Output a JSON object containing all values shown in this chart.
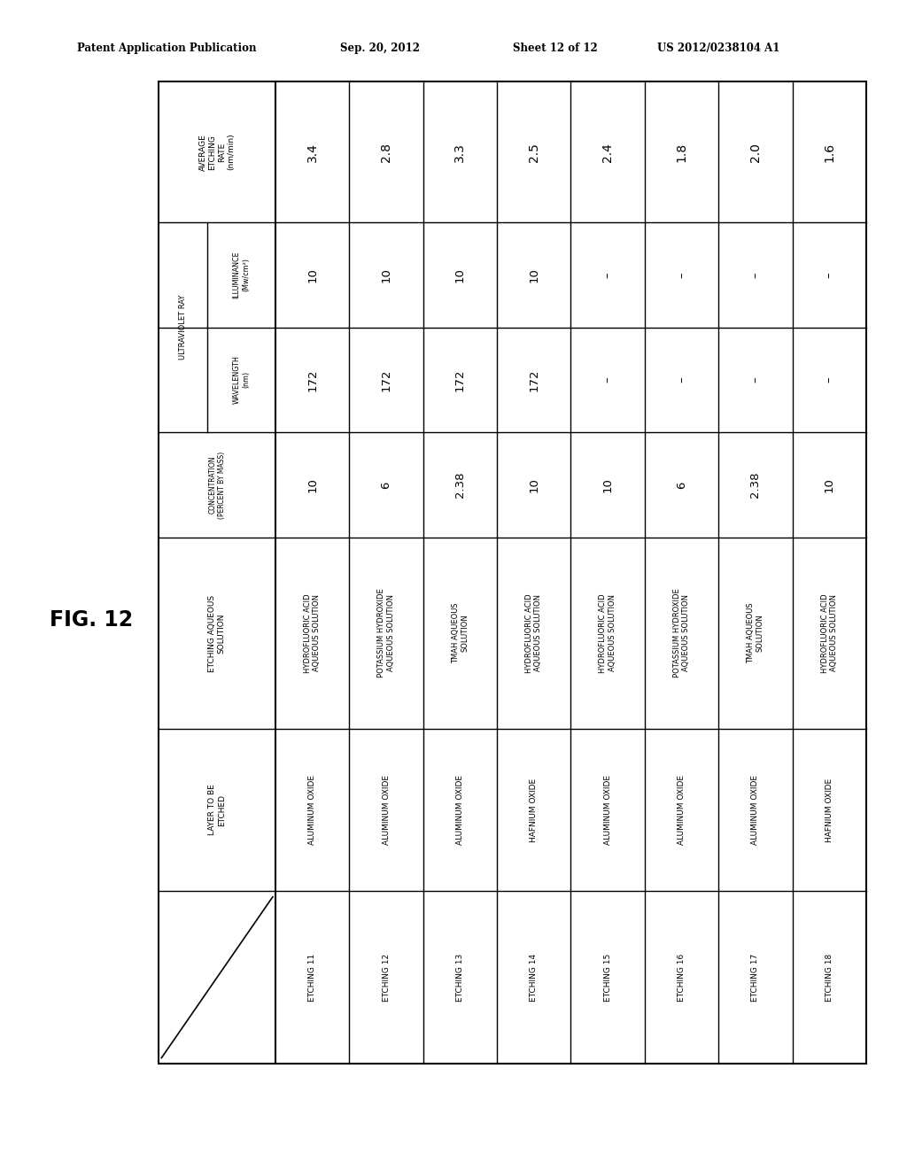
{
  "header_line1": "Patent Application Publication",
  "header_date": "Sep. 20, 2012",
  "header_sheet": "Sheet 12 of 12",
  "header_patent": "US 2012/0238104 A1",
  "fig_label": "FIG. 12",
  "bg_color": "#ffffff",
  "table_color": "#000000",
  "text_color": "#000000",
  "row_headers": [
    {
      "label": "AVERAGE\nETCHING\nRATE\n(nm/min)",
      "spans": 1,
      "sub": null
    },
    {
      "label": "ULTRAVIOLET RAY",
      "spans": 2,
      "sub": [
        "ILLUMINANCE\n(Mw/cm²)",
        "WAVELENGTH\n(nm)"
      ]
    },
    {
      "label": "CONCENTRATION\n(PERCENT BY MASS)",
      "spans": 1,
      "sub": null
    },
    {
      "label": "ETCHING AQUEOUS\nSOLUTION",
      "spans": 1,
      "sub": null
    },
    {
      "label": "LAYER TO BE\nETCHED",
      "spans": 1,
      "sub": null
    },
    {
      "label": "",
      "spans": 1,
      "sub": null
    }
  ],
  "data_cols": [
    {
      "id": "ETCHING 11",
      "layer": "ALUMINUM OXIDE",
      "solution": "HYDROFLUORIC ACID\nAQUEOUS SOLUTION",
      "concentration": "10",
      "wavelength": "172",
      "illuminance": "10",
      "avg_rate": "3.4"
    },
    {
      "id": "ETCHING 12",
      "layer": "ALUMINUM OXIDE",
      "solution": "POTASSIUM HYDROXIDE\nAQUEOUS SOLUTION",
      "concentration": "6",
      "wavelength": "172",
      "illuminance": "10",
      "avg_rate": "2.8"
    },
    {
      "id": "ETCHING 13",
      "layer": "ALUMINUM OXIDE",
      "solution": "TMAH AQUEOUS\nSOLUTION",
      "concentration": "2.38",
      "wavelength": "172",
      "illuminance": "10",
      "avg_rate": "3.3"
    },
    {
      "id": "ETCHING 14",
      "layer": "HAFNIUM OXIDE",
      "solution": "HYDROFLUORIC ACID\nAQUEOUS SOLUTION",
      "concentration": "10",
      "wavelength": "172",
      "illuminance": "10",
      "avg_rate": "2.5"
    },
    {
      "id": "ETCHING 15",
      "layer": "ALUMINUM OXIDE",
      "solution": "HYDROFLUORIC ACID\nAQUEOUS SOLUTION",
      "concentration": "10",
      "wavelength": "–",
      "illuminance": "–",
      "avg_rate": "2.4"
    },
    {
      "id": "ETCHING 16",
      "layer": "ALUMINUM OXIDE",
      "solution": "POTASSIUM HYDROXIDE\nAQUEOUS SOLUTION",
      "concentration": "6",
      "wavelength": "–",
      "illuminance": "–",
      "avg_rate": "1.8"
    },
    {
      "id": "ETCHING 17",
      "layer": "ALUMINUM OXIDE",
      "solution": "TMAH AQUEOUS\nSOLUTION",
      "concentration": "2.38",
      "wavelength": "–",
      "illuminance": "–",
      "avg_rate": "2.0"
    },
    {
      "id": "ETCHING 18",
      "layer": "HAFNIUM OXIDE",
      "solution": "HYDROFLUORIC ACID\nAQUEOUS SOLUTION",
      "concentration": "10",
      "wavelength": "–",
      "illuminance": "–",
      "avg_rate": "1.6"
    }
  ]
}
